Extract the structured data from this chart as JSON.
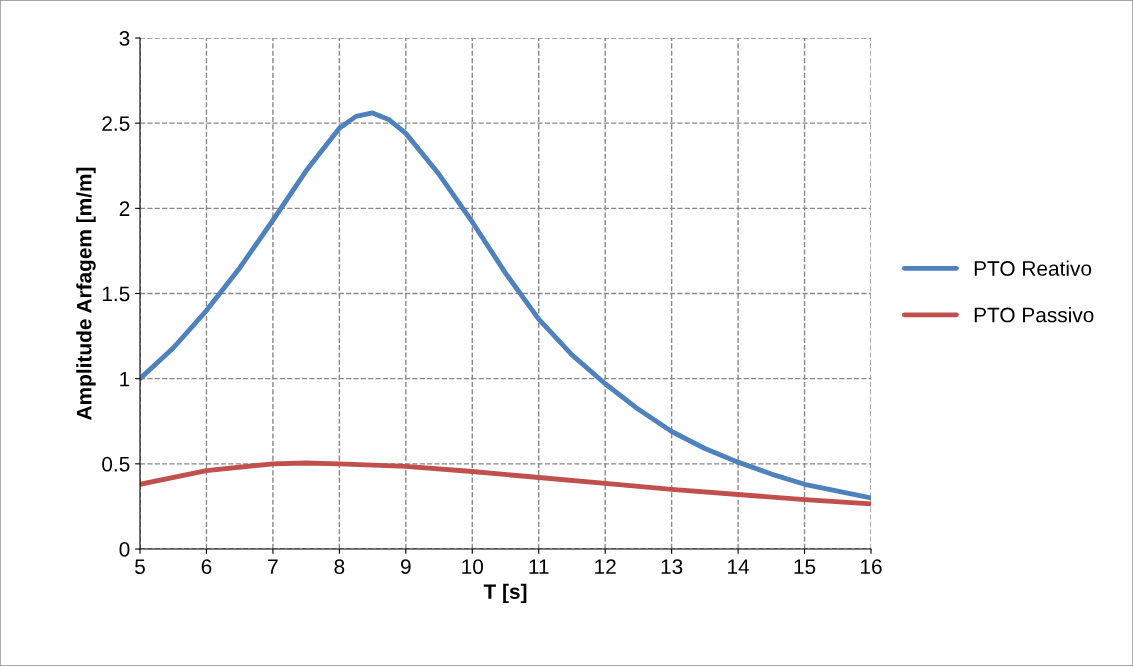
{
  "chart_data": {
    "type": "line",
    "xlabel": "T [s]",
    "ylabel": "Amplitude Arfagem [m/m]",
    "xlim": [
      5,
      16
    ],
    "xticks": [
      5,
      6,
      7,
      8,
      9,
      10,
      11,
      12,
      13,
      14,
      15,
      16
    ],
    "ylim": [
      0,
      3
    ],
    "yticks": [
      0,
      0.5,
      1,
      1.5,
      2,
      2.5,
      3
    ],
    "grid": true,
    "legend": "right",
    "marker": "none",
    "line_style": "solid",
    "series": [
      {
        "name": "PTO Reativo",
        "color": "#4f81bd",
        "x": [
          5,
          5.5,
          6,
          6.5,
          7,
          7.5,
          8,
          8.25,
          8.5,
          8.75,
          9,
          9.5,
          10,
          10.5,
          11,
          11.5,
          12,
          12.5,
          13,
          13.5,
          14,
          14.5,
          15,
          15.5,
          16
        ],
        "values": [
          1.0,
          1.18,
          1.4,
          1.65,
          1.93,
          2.22,
          2.47,
          2.54,
          2.56,
          2.52,
          2.44,
          2.2,
          1.92,
          1.62,
          1.35,
          1.14,
          0.97,
          0.82,
          0.69,
          0.59,
          0.51,
          0.44,
          0.38,
          0.34,
          0.3
        ]
      },
      {
        "name": "PTO Passivo",
        "color": "#c0504d",
        "x": [
          5,
          6,
          7,
          7.5,
          8,
          9,
          10,
          11,
          12,
          13,
          14,
          15,
          16
        ],
        "values": [
          0.38,
          0.46,
          0.5,
          0.505,
          0.5,
          0.485,
          0.455,
          0.42,
          0.385,
          0.35,
          0.32,
          0.29,
          0.265
        ]
      }
    ]
  }
}
